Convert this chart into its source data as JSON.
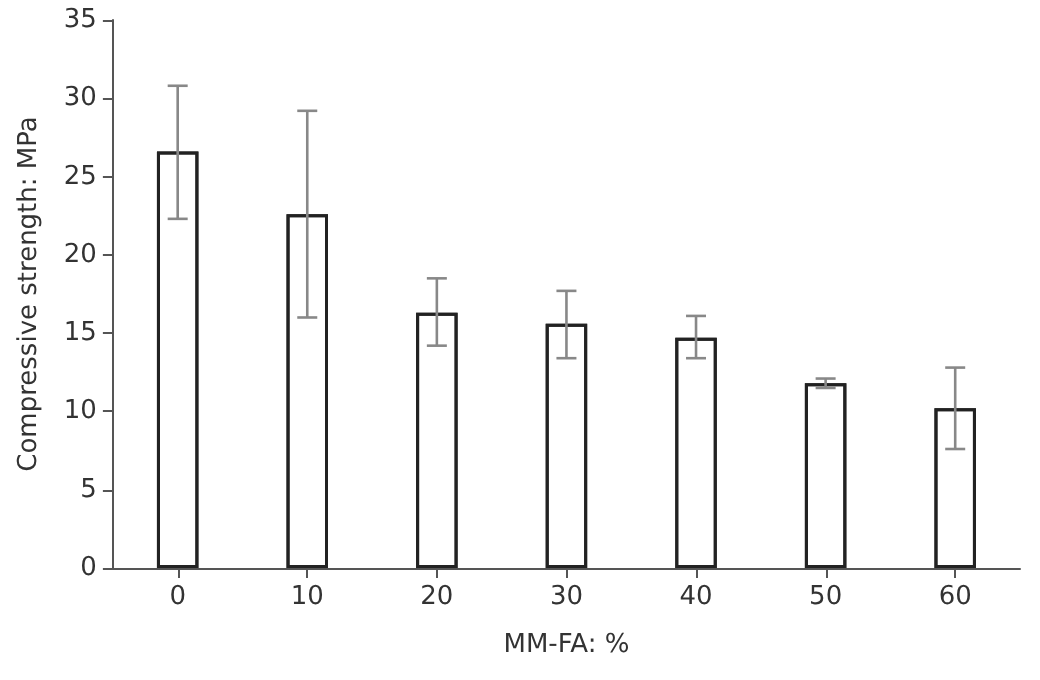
{
  "chart_data": {
    "type": "bar",
    "xlabel": "MM-FA: %",
    "ylabel": "Compressive strength: MPa",
    "categories": [
      "0",
      "10",
      "20",
      "30",
      "40",
      "50",
      "60"
    ],
    "values": [
      26.6,
      22.6,
      16.3,
      15.6,
      14.7,
      11.8,
      10.2
    ],
    "errors": [
      [
        22.3,
        30.8
      ],
      [
        16.0,
        29.2
      ],
      [
        14.2,
        18.5
      ],
      [
        13.4,
        17.7
      ],
      [
        13.4,
        16.1
      ],
      [
        11.5,
        12.1
      ],
      [
        7.6,
        12.8
      ]
    ],
    "color": "#ffffff",
    "ylim": [
      0,
      35
    ],
    "yticks": [
      0,
      5,
      10,
      15,
      20,
      25,
      30,
      35
    ],
    "grid": false
  }
}
